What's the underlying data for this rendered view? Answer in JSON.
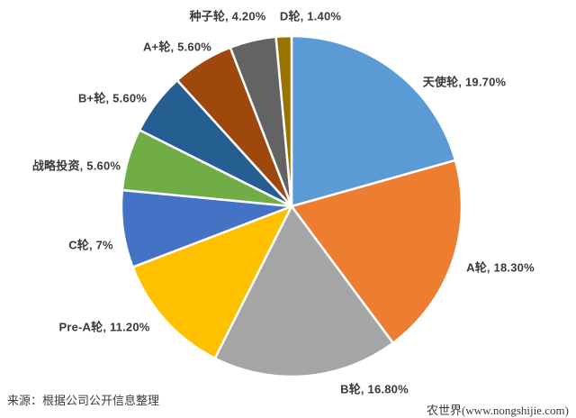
{
  "chart_data": {
    "type": "pie",
    "title": "",
    "legend": "none",
    "labels_position": "outside",
    "start_angle_deg": 0,
    "direction": "clockwise",
    "slices": [
      {
        "name": "天使轮",
        "value": 19.7,
        "display": "天使轮, 19.70%",
        "color": "#5B9BD5"
      },
      {
        "name": "A轮",
        "value": 18.3,
        "display": "A轮, 18.30%",
        "color": "#ED7D31"
      },
      {
        "name": "B轮",
        "value": 16.8,
        "display": "B轮, 16.80%",
        "color": "#A5A5A5"
      },
      {
        "name": "Pre-A轮",
        "value": 11.2,
        "display": "Pre-A轮, 11.20%",
        "color": "#FFC000"
      },
      {
        "name": "C轮",
        "value": 7,
        "display": "C轮, 7%",
        "color": "#4472C4"
      },
      {
        "name": "战略投资",
        "value": 5.6,
        "display": "战略投资, 5.60%",
        "color": "#70AD47"
      },
      {
        "name": "B+轮",
        "value": 5.6,
        "display": "B+轮, 5.60%",
        "color": "#255E91"
      },
      {
        "name": "A+轮",
        "value": 5.6,
        "display": "A+轮, 5.60%",
        "color": "#9E480E"
      },
      {
        "name": "种子轮",
        "value": 4.2,
        "display": "种子轮, 4.20%",
        "color": "#636363"
      },
      {
        "name": "D轮",
        "value": 1.4,
        "display": "D轮, 1.40%",
        "color": "#997300"
      }
    ]
  },
  "footer": {
    "source": "来源：根据公司公开信息整理",
    "watermark": "农世界(www.nongshijie.com)"
  }
}
